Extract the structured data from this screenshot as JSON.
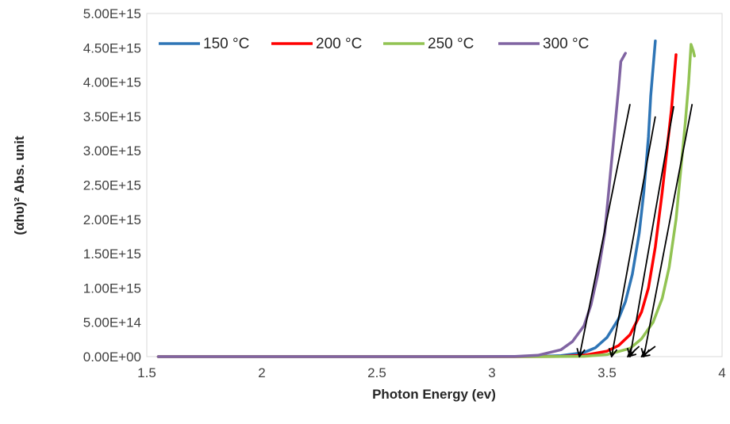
{
  "chart_data": {
    "type": "line",
    "title": "",
    "xlabel": "Photon Energy (ev)",
    "ylabel": "(αhυ)² Abs. unit",
    "xlim": [
      1.5,
      4
    ],
    "ylim": [
      0,
      5000000000000000.0
    ],
    "x_ticks": [
      1.5,
      2,
      2.5,
      3,
      3.5,
      4
    ],
    "x_tick_labels": [
      "1.5",
      "2",
      "2.5",
      "3",
      "3.5",
      "4"
    ],
    "y_ticks": [
      0,
      500000000000000.0,
      1000000000000000.0,
      1500000000000000.0,
      2000000000000000.0,
      2500000000000000.0,
      3000000000000000.0,
      3500000000000000.0,
      4000000000000000.0,
      4500000000000000.0,
      5000000000000000.0
    ],
    "y_tick_labels": [
      "0.00E+00",
      "5.00E+14",
      "1.00E+15",
      "1.50E+15",
      "2.00E+15",
      "2.50E+15",
      "3.00E+15",
      "3.50E+15",
      "4.00E+15",
      "4.50E+15",
      "5.00E+15"
    ],
    "grid": false,
    "legend_position": "top",
    "series": [
      {
        "name": "150 °C",
        "color": "#2E75B6",
        "points": [
          [
            1.55,
            0
          ],
          [
            3.0,
            0
          ],
          [
            3.2,
            2000000000000.0
          ],
          [
            3.3,
            15000000000000.0
          ],
          [
            3.4,
            60000000000000.0
          ],
          [
            3.45,
            130000000000000.0
          ],
          [
            3.5,
            280000000000000.0
          ],
          [
            3.55,
            550000000000000.0
          ],
          [
            3.58,
            800000000000000.0
          ],
          [
            3.61,
            1200000000000000.0
          ],
          [
            3.64,
            1800000000000000.0
          ],
          [
            3.66,
            2400000000000000.0
          ],
          [
            3.68,
            3200000000000000.0
          ],
          [
            3.69,
            3800000000000000.0
          ],
          [
            3.7,
            4200000000000000.0
          ],
          [
            3.71,
            4600000000000000.0
          ]
        ]
      },
      {
        "name": "200 °C",
        "color": "#FF0000",
        "points": [
          [
            1.55,
            0
          ],
          [
            3.1,
            0
          ],
          [
            3.3,
            3000000000000.0
          ],
          [
            3.4,
            20000000000000.0
          ],
          [
            3.5,
            80000000000000.0
          ],
          [
            3.55,
            160000000000000.0
          ],
          [
            3.6,
            320000000000000.0
          ],
          [
            3.65,
            650000000000000.0
          ],
          [
            3.68,
            1000000000000000.0
          ],
          [
            3.71,
            1600000000000000.0
          ],
          [
            3.74,
            2400000000000000.0
          ],
          [
            3.76,
            3000000000000000.0
          ],
          [
            3.78,
            3600000000000000.0
          ],
          [
            3.79,
            4000000000000000.0
          ],
          [
            3.8,
            4400000000000000.0
          ]
        ]
      },
      {
        "name": "250 °C",
        "color": "#92C353",
        "points": [
          [
            1.55,
            0
          ],
          [
            3.2,
            0
          ],
          [
            3.4,
            5000000000000.0
          ],
          [
            3.5,
            30000000000000.0
          ],
          [
            3.6,
            120000000000000.0
          ],
          [
            3.65,
            260000000000000.0
          ],
          [
            3.7,
            500000000000000.0
          ],
          [
            3.74,
            850000000000000.0
          ],
          [
            3.77,
            1300000000000000.0
          ],
          [
            3.8,
            2000000000000000.0
          ],
          [
            3.82,
            2700000000000000.0
          ],
          [
            3.84,
            3400000000000000.0
          ],
          [
            3.855,
            4000000000000000.0
          ],
          [
            3.865,
            4550000000000000.0
          ],
          [
            3.875,
            4450000000000000.0
          ],
          [
            3.88,
            4380000000000000.0
          ]
        ]
      },
      {
        "name": "300 °C",
        "color": "#8064A2",
        "points": [
          [
            1.55,
            0
          ],
          [
            2.9,
            0
          ],
          [
            3.1,
            3000000000000.0
          ],
          [
            3.2,
            20000000000000.0
          ],
          [
            3.3,
            100000000000000.0
          ],
          [
            3.35,
            220000000000000.0
          ],
          [
            3.4,
            450000000000000.0
          ],
          [
            3.43,
            750000000000000.0
          ],
          [
            3.46,
            1200000000000000.0
          ],
          [
            3.49,
            1800000000000000.0
          ],
          [
            3.51,
            2500000000000000.0
          ],
          [
            3.53,
            3200000000000000.0
          ],
          [
            3.55,
            3900000000000000.0
          ],
          [
            3.56,
            4300000000000000.0
          ],
          [
            3.58,
            4420000000000000.0
          ]
        ]
      }
    ],
    "annotations": [
      {
        "type": "arrow",
        "from": [
          3.6,
          3680000000000000.0
        ],
        "to": [
          3.38,
          0
        ],
        "color": "#000000"
      },
      {
        "type": "arrow",
        "from": [
          3.71,
          3500000000000000.0
        ],
        "to": [
          3.52,
          0
        ],
        "color": "#000000"
      },
      {
        "type": "arrow",
        "from": [
          3.79,
          3650000000000000.0
        ],
        "to": [
          3.6,
          0
        ],
        "color": "#000000"
      },
      {
        "type": "arrow",
        "from": [
          3.87,
          3680000000000000.0
        ],
        "to": [
          3.66,
          0
        ],
        "color": "#000000"
      },
      {
        "type": "arrow",
        "from": [
          3.64,
          150000000000000.0
        ],
        "to": [
          3.59,
          0
        ],
        "color": "#000000"
      },
      {
        "type": "arrow",
        "from": [
          3.71,
          150000000000000.0
        ],
        "to": [
          3.65,
          0
        ],
        "color": "#000000"
      }
    ]
  }
}
